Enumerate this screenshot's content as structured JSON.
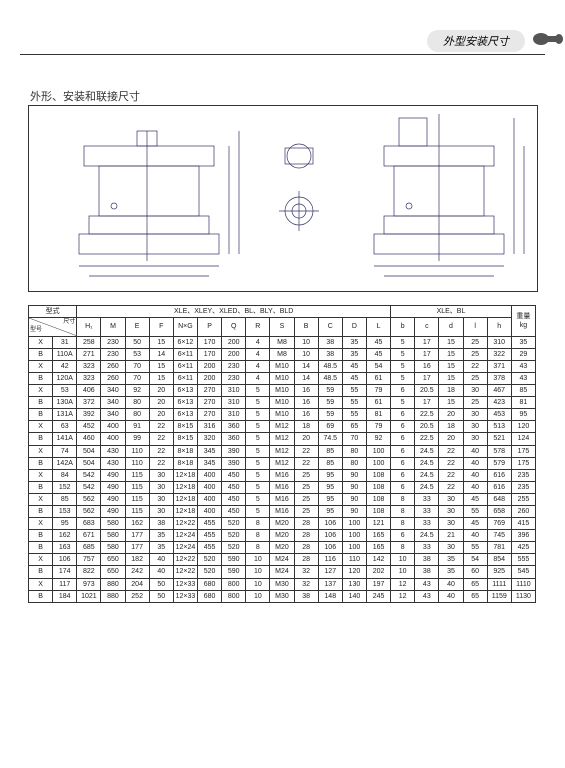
{
  "header_tab": "外型安装尺寸",
  "subtitle": "外形、安装和联接尺寸",
  "table": {
    "group1": "XLE、XLEY、XLED、BL、BLY、BLD",
    "group2": "XLE、BL",
    "type_label": "型式",
    "dim_label": "尺寸",
    "model_label": "型号",
    "weight_label": "重量",
    "weight_unit": "kg",
    "cols": [
      "H₁",
      "M",
      "E",
      "F",
      "N×G",
      "P",
      "Q",
      "R",
      "S",
      "B",
      "C",
      "D",
      "L",
      "b",
      "c",
      "d",
      "l",
      "h"
    ],
    "rows": [
      {
        "x": "X",
        "c": "31",
        "v": [
          "258",
          "230",
          "50",
          "15",
          "6×12",
          "170",
          "200",
          "4",
          "M8",
          "10",
          "38",
          "35",
          "45",
          "5",
          "17",
          "15",
          "25",
          "310",
          "35"
        ]
      },
      {
        "x": "B",
        "c": "110A",
        "v": [
          "271",
          "230",
          "53",
          "14",
          "6×11",
          "170",
          "200",
          "4",
          "M8",
          "10",
          "38",
          "35",
          "45",
          "5",
          "17",
          "15",
          "25",
          "322",
          "29"
        ]
      },
      {
        "x": "X",
        "c": "42",
        "v": [
          "323",
          "260",
          "70",
          "15",
          "6×11",
          "200",
          "230",
          "4",
          "M10",
          "14",
          "48.5",
          "45",
          "54",
          "5",
          "16",
          "15",
          "22",
          "371",
          "43"
        ]
      },
      {
        "x": "B",
        "c": "120A",
        "v": [
          "323",
          "260",
          "70",
          "15",
          "6×11",
          "200",
          "230",
          "4",
          "M10",
          "14",
          "48.5",
          "45",
          "61",
          "5",
          "17",
          "15",
          "25",
          "378",
          "43"
        ]
      },
      {
        "x": "X",
        "c": "53",
        "v": [
          "406",
          "340",
          "92",
          "20",
          "6×13",
          "270",
          "310",
          "5",
          "M10",
          "16",
          "59",
          "55",
          "79",
          "6",
          "20.5",
          "18",
          "30",
          "467",
          "85"
        ]
      },
      {
        "x": "B",
        "c": "130A",
        "v": [
          "372",
          "340",
          "80",
          "20",
          "6×13",
          "270",
          "310",
          "5",
          "M10",
          "16",
          "59",
          "55",
          "61",
          "5",
          "17",
          "15",
          "25",
          "423",
          "81"
        ]
      },
      {
        "x": "B",
        "c": "131A",
        "v": [
          "392",
          "340",
          "80",
          "20",
          "6×13",
          "270",
          "310",
          "5",
          "M10",
          "16",
          "59",
          "55",
          "81",
          "6",
          "22.5",
          "20",
          "30",
          "453",
          "95"
        ]
      },
      {
        "x": "X",
        "c": "63",
        "v": [
          "452",
          "400",
          "91",
          "22",
          "8×15",
          "316",
          "360",
          "5",
          "M12",
          "18",
          "69",
          "65",
          "79",
          "6",
          "20.5",
          "18",
          "30",
          "513",
          "120"
        ]
      },
      {
        "x": "B",
        "c": "141A",
        "v": [
          "460",
          "400",
          "99",
          "22",
          "8×15",
          "320",
          "360",
          "5",
          "M12",
          "20",
          "74.5",
          "70",
          "92",
          "6",
          "22.5",
          "20",
          "30",
          "521",
          "124"
        ]
      },
      {
        "x": "X",
        "c": "74",
        "v": [
          "504",
          "430",
          "110",
          "22",
          "8×18",
          "345",
          "390",
          "5",
          "M12",
          "22",
          "85",
          "80",
          "100",
          "6",
          "24.5",
          "22",
          "40",
          "578",
          "175"
        ]
      },
      {
        "x": "B",
        "c": "142A",
        "v": [
          "504",
          "430",
          "110",
          "22",
          "8×18",
          "345",
          "390",
          "5",
          "M12",
          "22",
          "85",
          "80",
          "100",
          "6",
          "24.5",
          "22",
          "40",
          "579",
          "175"
        ]
      },
      {
        "x": "X",
        "c": "84",
        "v": [
          "542",
          "490",
          "115",
          "30",
          "12×18",
          "400",
          "450",
          "5",
          "M16",
          "25",
          "95",
          "90",
          "108",
          "6",
          "24.5",
          "22",
          "40",
          "616",
          "235"
        ]
      },
      {
        "x": "B",
        "c": "152",
        "v": [
          "542",
          "490",
          "115",
          "30",
          "12×18",
          "400",
          "450",
          "5",
          "M16",
          "25",
          "95",
          "90",
          "108",
          "6",
          "24.5",
          "22",
          "40",
          "616",
          "235"
        ]
      },
      {
        "x": "X",
        "c": "85",
        "v": [
          "562",
          "490",
          "115",
          "30",
          "12×18",
          "400",
          "450",
          "5",
          "M16",
          "25",
          "95",
          "90",
          "108",
          "8",
          "33",
          "30",
          "45",
          "648",
          "255"
        ]
      },
      {
        "x": "B",
        "c": "153",
        "v": [
          "562",
          "490",
          "115",
          "30",
          "12×18",
          "400",
          "450",
          "5",
          "M16",
          "25",
          "95",
          "90",
          "108",
          "8",
          "33",
          "30",
          "55",
          "658",
          "260"
        ]
      },
      {
        "x": "X",
        "c": "95",
        "v": [
          "683",
          "580",
          "162",
          "38",
          "12×22",
          "455",
          "520",
          "8",
          "M20",
          "28",
          "106",
          "100",
          "121",
          "8",
          "33",
          "30",
          "45",
          "769",
          "415"
        ]
      },
      {
        "x": "B",
        "c": "162",
        "v": [
          "671",
          "580",
          "177",
          "35",
          "12×24",
          "455",
          "520",
          "8",
          "M20",
          "28",
          "106",
          "100",
          "165",
          "6",
          "24.5",
          "21",
          "40",
          "745",
          "396"
        ]
      },
      {
        "x": "B",
        "c": "163",
        "v": [
          "685",
          "580",
          "177",
          "35",
          "12×24",
          "455",
          "520",
          "8",
          "M20",
          "28",
          "106",
          "100",
          "165",
          "8",
          "33",
          "30",
          "55",
          "781",
          "425"
        ]
      },
      {
        "x": "X",
        "c": "106",
        "v": [
          "757",
          "650",
          "182",
          "40",
          "12×22",
          "520",
          "590",
          "10",
          "M24",
          "28",
          "116",
          "110",
          "142",
          "10",
          "38",
          "35",
          "54",
          "854",
          "555"
        ]
      },
      {
        "x": "B",
        "c": "174",
        "v": [
          "822",
          "650",
          "242",
          "40",
          "12×22",
          "520",
          "590",
          "10",
          "M24",
          "32",
          "127",
          "120",
          "202",
          "10",
          "38",
          "35",
          "60",
          "925",
          "545"
        ]
      },
      {
        "x": "X",
        "c": "117",
        "v": [
          "973",
          "880",
          "204",
          "50",
          "12×33",
          "680",
          "800",
          "10",
          "M30",
          "32",
          "137",
          "130",
          "197",
          "12",
          "43",
          "40",
          "65",
          "1111",
          "1110"
        ]
      },
      {
        "x": "B",
        "c": "184",
        "v": [
          "1021",
          "880",
          "252",
          "50",
          "12×33",
          "680",
          "800",
          "10",
          "M30",
          "38",
          "148",
          "140",
          "245",
          "12",
          "43",
          "40",
          "65",
          "1159",
          "1130"
        ]
      }
    ]
  }
}
